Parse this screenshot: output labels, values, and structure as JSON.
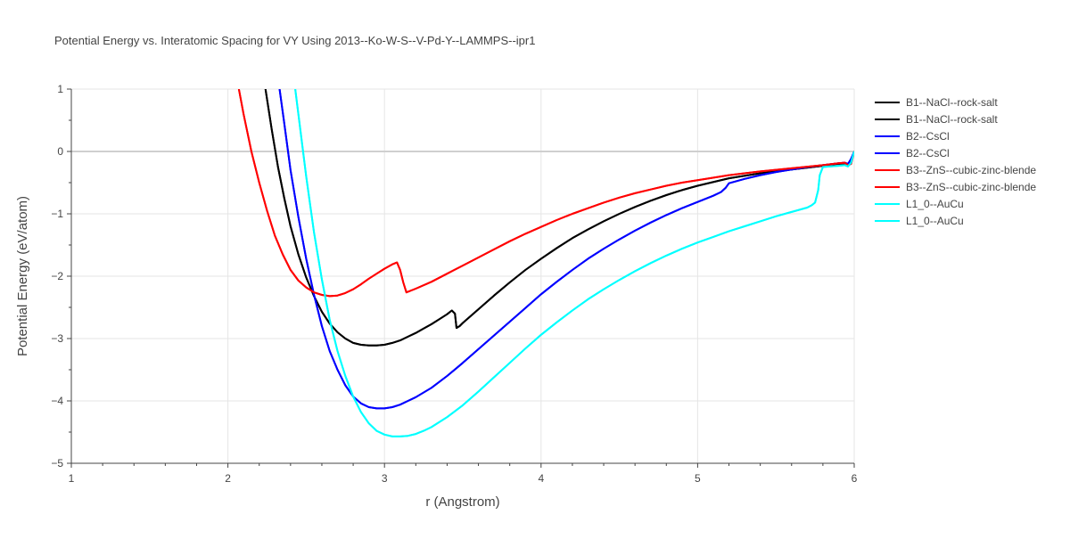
{
  "chart_data": {
    "type": "line",
    "title": "Potential Energy vs. Interatomic Spacing for VY Using 2013--Ko-W-S--V-Pd-Y--LAMMPS--ipr1",
    "xlabel": "r (Angstrom)",
    "ylabel": "Potential Energy (eV/atom)",
    "xlim": [
      1,
      6
    ],
    "ylim": [
      -5,
      1
    ],
    "xticks": [
      1,
      2,
      3,
      4,
      5,
      6
    ],
    "xtick_labels": [
      "1",
      "2",
      "3",
      "4",
      "5",
      "6"
    ],
    "yticks": [
      1,
      0,
      -1,
      -2,
      -3,
      -4,
      -5
    ],
    "ytick_labels": [
      "1",
      "0",
      "−1",
      "−2",
      "−3",
      "−4",
      "−5"
    ],
    "grid": true,
    "legend_position": "top-right",
    "series": [
      {
        "name": "B1--NaCl--rock-salt",
        "color": "#000000",
        "x": [
          2.24,
          2.28,
          2.32,
          2.36,
          2.4,
          2.45,
          2.5,
          2.55,
          2.6,
          2.65,
          2.7,
          2.75,
          2.8,
          2.85,
          2.9,
          2.95,
          3.0,
          3.05,
          3.1,
          3.15,
          3.2,
          3.25,
          3.3,
          3.35,
          3.4,
          3.43,
          3.45,
          3.46,
          3.48,
          3.5,
          3.6,
          3.7,
          3.8,
          3.9,
          4.0,
          4.1,
          4.2,
          4.3,
          4.4,
          4.5,
          4.6,
          4.7,
          4.8,
          4.9,
          5.0,
          5.2,
          5.4,
          5.6,
          5.8,
          5.9,
          5.94,
          5.96,
          5.98,
          6.0
        ],
        "y": [
          1.0,
          0.35,
          -0.25,
          -0.75,
          -1.2,
          -1.65,
          -2.02,
          -2.32,
          -2.57,
          -2.76,
          -2.9,
          -3.0,
          -3.07,
          -3.1,
          -3.11,
          -3.11,
          -3.1,
          -3.07,
          -3.03,
          -2.97,
          -2.91,
          -2.84,
          -2.77,
          -2.69,
          -2.61,
          -2.55,
          -2.6,
          -2.83,
          -2.8,
          -2.75,
          -2.53,
          -2.31,
          -2.1,
          -1.9,
          -1.72,
          -1.55,
          -1.39,
          -1.25,
          -1.12,
          -1.0,
          -0.89,
          -0.79,
          -0.7,
          -0.62,
          -0.55,
          -0.43,
          -0.35,
          -0.29,
          -0.23,
          -0.2,
          -0.19,
          -0.21,
          -0.15,
          0.0
        ]
      },
      {
        "name": "B1--NaCl--rock-salt",
        "color": "#000000",
        "x": [
          2.24,
          2.28,
          2.32,
          2.36,
          2.4,
          2.45,
          2.5,
          2.55,
          2.6,
          2.65,
          2.7,
          2.75,
          2.8,
          2.85,
          2.9,
          2.95,
          3.0,
          3.05,
          3.1,
          3.15,
          3.2,
          3.25,
          3.3,
          3.35,
          3.4,
          3.43,
          3.45,
          3.46,
          3.48,
          3.5,
          3.6,
          3.7,
          3.8,
          3.9,
          4.0,
          4.1,
          4.2,
          4.3,
          4.4,
          4.5,
          4.6,
          4.7,
          4.8,
          4.9,
          5.0,
          5.2,
          5.4,
          5.6,
          5.8,
          5.9,
          5.94,
          5.96,
          5.98,
          6.0
        ],
        "y": [
          1.0,
          0.35,
          -0.25,
          -0.75,
          -1.2,
          -1.65,
          -2.02,
          -2.32,
          -2.57,
          -2.76,
          -2.9,
          -3.0,
          -3.07,
          -3.1,
          -3.11,
          -3.11,
          -3.1,
          -3.07,
          -3.03,
          -2.97,
          -2.91,
          -2.84,
          -2.77,
          -2.69,
          -2.61,
          -2.55,
          -2.6,
          -2.83,
          -2.8,
          -2.75,
          -2.53,
          -2.31,
          -2.1,
          -1.9,
          -1.72,
          -1.55,
          -1.39,
          -1.25,
          -1.12,
          -1.0,
          -0.89,
          -0.79,
          -0.7,
          -0.62,
          -0.55,
          -0.43,
          -0.35,
          -0.29,
          -0.23,
          -0.2,
          -0.19,
          -0.21,
          -0.15,
          0.0
        ]
      },
      {
        "name": "B2--CsCl",
        "color": "#0000ff",
        "x": [
          2.33,
          2.36,
          2.4,
          2.45,
          2.5,
          2.55,
          2.6,
          2.65,
          2.7,
          2.75,
          2.8,
          2.85,
          2.9,
          2.95,
          3.0,
          3.05,
          3.1,
          3.15,
          3.2,
          3.3,
          3.4,
          3.5,
          3.6,
          3.7,
          3.8,
          3.9,
          4.0,
          4.1,
          4.2,
          4.3,
          4.4,
          4.5,
          4.6,
          4.7,
          4.8,
          4.9,
          5.0,
          5.1,
          5.15,
          5.18,
          5.2,
          5.3,
          5.4,
          5.5,
          5.6,
          5.7,
          5.8,
          5.9,
          5.94,
          5.96,
          5.98,
          6.0
        ],
        "y": [
          1.0,
          0.45,
          -0.3,
          -1.05,
          -1.72,
          -2.3,
          -2.8,
          -3.2,
          -3.5,
          -3.75,
          -3.93,
          -4.04,
          -4.1,
          -4.12,
          -4.12,
          -4.1,
          -4.06,
          -4.0,
          -3.94,
          -3.79,
          -3.6,
          -3.39,
          -3.17,
          -2.95,
          -2.73,
          -2.51,
          -2.29,
          -2.09,
          -1.9,
          -1.72,
          -1.56,
          -1.41,
          -1.27,
          -1.14,
          -1.02,
          -0.91,
          -0.81,
          -0.71,
          -0.65,
          -0.58,
          -0.51,
          -0.44,
          -0.38,
          -0.33,
          -0.29,
          -0.25,
          -0.22,
          -0.19,
          -0.18,
          -0.2,
          -0.12,
          0.0
        ]
      },
      {
        "name": "B2--CsCl",
        "color": "#0000ff",
        "x": [
          2.33,
          2.36,
          2.4,
          2.45,
          2.5,
          2.55,
          2.6,
          2.65,
          2.7,
          2.75,
          2.8,
          2.85,
          2.9,
          2.95,
          3.0,
          3.05,
          3.1,
          3.15,
          3.2,
          3.3,
          3.4,
          3.5,
          3.6,
          3.7,
          3.8,
          3.9,
          4.0,
          4.1,
          4.2,
          4.3,
          4.4,
          4.5,
          4.6,
          4.7,
          4.8,
          4.9,
          5.0,
          5.1,
          5.15,
          5.18,
          5.2,
          5.3,
          5.4,
          5.5,
          5.6,
          5.7,
          5.8,
          5.9,
          5.94,
          5.96,
          5.98,
          6.0
        ],
        "y": [
          1.0,
          0.45,
          -0.3,
          -1.05,
          -1.72,
          -2.3,
          -2.8,
          -3.2,
          -3.5,
          -3.75,
          -3.93,
          -4.04,
          -4.1,
          -4.12,
          -4.12,
          -4.1,
          -4.06,
          -4.0,
          -3.94,
          -3.79,
          -3.6,
          -3.39,
          -3.17,
          -2.95,
          -2.73,
          -2.51,
          -2.29,
          -2.09,
          -1.9,
          -1.72,
          -1.56,
          -1.41,
          -1.27,
          -1.14,
          -1.02,
          -0.91,
          -0.81,
          -0.71,
          -0.65,
          -0.58,
          -0.51,
          -0.44,
          -0.38,
          -0.33,
          -0.29,
          -0.25,
          -0.22,
          -0.19,
          -0.18,
          -0.2,
          -0.12,
          0.0
        ]
      },
      {
        "name": "B3--ZnS--cubic-zinc-blende",
        "color": "#ff0000",
        "x": [
          2.07,
          2.1,
          2.15,
          2.2,
          2.25,
          2.3,
          2.35,
          2.4,
          2.45,
          2.5,
          2.55,
          2.6,
          2.65,
          2.7,
          2.75,
          2.8,
          2.85,
          2.9,
          2.95,
          3.0,
          3.05,
          3.08,
          3.1,
          3.12,
          3.14,
          3.2,
          3.3,
          3.4,
          3.5,
          3.6,
          3.7,
          3.8,
          3.9,
          4.0,
          4.1,
          4.2,
          4.3,
          4.4,
          4.5,
          4.6,
          4.7,
          4.8,
          4.9,
          5.0,
          5.2,
          5.4,
          5.6,
          5.8,
          5.9,
          5.94,
          5.96,
          5.98,
          6.0
        ],
        "y": [
          1.0,
          0.6,
          0.0,
          -0.5,
          -0.95,
          -1.35,
          -1.65,
          -1.9,
          -2.07,
          -2.18,
          -2.26,
          -2.3,
          -2.32,
          -2.31,
          -2.27,
          -2.21,
          -2.13,
          -2.04,
          -1.96,
          -1.88,
          -1.81,
          -1.78,
          -1.9,
          -2.1,
          -2.26,
          -2.2,
          -2.09,
          -1.96,
          -1.83,
          -1.7,
          -1.57,
          -1.44,
          -1.32,
          -1.21,
          -1.1,
          -1.0,
          -0.91,
          -0.82,
          -0.74,
          -0.67,
          -0.61,
          -0.55,
          -0.5,
          -0.46,
          -0.38,
          -0.32,
          -0.27,
          -0.22,
          -0.19,
          -0.18,
          -0.22,
          -0.2,
          0.0
        ]
      },
      {
        "name": "B3--ZnS--cubic-zinc-blende",
        "color": "#ff0000",
        "x": [
          2.07,
          2.1,
          2.15,
          2.2,
          2.25,
          2.3,
          2.35,
          2.4,
          2.45,
          2.5,
          2.55,
          2.6,
          2.65,
          2.7,
          2.75,
          2.8,
          2.85,
          2.9,
          2.95,
          3.0,
          3.05,
          3.08,
          3.1,
          3.12,
          3.14,
          3.2,
          3.3,
          3.4,
          3.5,
          3.6,
          3.7,
          3.8,
          3.9,
          4.0,
          4.1,
          4.2,
          4.3,
          4.4,
          4.5,
          4.6,
          4.7,
          4.8,
          4.9,
          5.0,
          5.2,
          5.4,
          5.6,
          5.8,
          5.9,
          5.94,
          5.96,
          5.98,
          6.0
        ],
        "y": [
          1.0,
          0.6,
          0.0,
          -0.5,
          -0.95,
          -1.35,
          -1.65,
          -1.9,
          -2.07,
          -2.18,
          -2.26,
          -2.3,
          -2.32,
          -2.31,
          -2.27,
          -2.21,
          -2.13,
          -2.04,
          -1.96,
          -1.88,
          -1.81,
          -1.78,
          -1.9,
          -2.1,
          -2.26,
          -2.2,
          -2.09,
          -1.96,
          -1.83,
          -1.7,
          -1.57,
          -1.44,
          -1.32,
          -1.21,
          -1.1,
          -1.0,
          -0.91,
          -0.82,
          -0.74,
          -0.67,
          -0.61,
          -0.55,
          -0.5,
          -0.46,
          -0.38,
          -0.32,
          -0.27,
          -0.22,
          -0.19,
          -0.18,
          -0.22,
          -0.2,
          0.0
        ]
      },
      {
        "name": "L1_0--AuCu",
        "color": "#00ffff",
        "x": [
          2.43,
          2.45,
          2.5,
          2.55,
          2.6,
          2.65,
          2.7,
          2.75,
          2.8,
          2.85,
          2.9,
          2.95,
          3.0,
          3.05,
          3.1,
          3.15,
          3.2,
          3.25,
          3.3,
          3.4,
          3.5,
          3.6,
          3.7,
          3.8,
          3.9,
          4.0,
          4.1,
          4.2,
          4.3,
          4.4,
          4.5,
          4.6,
          4.7,
          4.8,
          4.9,
          5.0,
          5.1,
          5.2,
          5.3,
          5.4,
          5.5,
          5.6,
          5.7,
          5.73,
          5.75,
          5.77,
          5.78,
          5.8,
          5.85,
          5.9,
          5.94,
          5.96,
          5.98,
          6.0
        ],
        "y": [
          1.0,
          0.6,
          -0.4,
          -1.3,
          -2.05,
          -2.7,
          -3.2,
          -3.6,
          -3.93,
          -4.18,
          -4.36,
          -4.48,
          -4.54,
          -4.57,
          -4.57,
          -4.56,
          -4.53,
          -4.48,
          -4.42,
          -4.26,
          -4.07,
          -3.85,
          -3.62,
          -3.39,
          -3.16,
          -2.94,
          -2.74,
          -2.55,
          -2.37,
          -2.21,
          -2.06,
          -1.92,
          -1.79,
          -1.67,
          -1.56,
          -1.46,
          -1.37,
          -1.28,
          -1.2,
          -1.12,
          -1.04,
          -0.97,
          -0.9,
          -0.86,
          -0.82,
          -0.62,
          -0.38,
          -0.25,
          -0.24,
          -0.23,
          -0.22,
          -0.24,
          -0.18,
          0.0
        ]
      },
      {
        "name": "L1_0--AuCu",
        "color": "#00ffff",
        "x": [
          2.43,
          2.45,
          2.5,
          2.55,
          2.6,
          2.65,
          2.7,
          2.75,
          2.8,
          2.85,
          2.9,
          2.95,
          3.0,
          3.05,
          3.1,
          3.15,
          3.2,
          3.25,
          3.3,
          3.4,
          3.5,
          3.6,
          3.7,
          3.8,
          3.9,
          4.0,
          4.1,
          4.2,
          4.3,
          4.4,
          4.5,
          4.6,
          4.7,
          4.8,
          4.9,
          5.0,
          5.1,
          5.2,
          5.3,
          5.4,
          5.5,
          5.6,
          5.7,
          5.73,
          5.75,
          5.77,
          5.78,
          5.8,
          5.85,
          5.9,
          5.94,
          5.96,
          5.98,
          6.0
        ],
        "y": [
          1.0,
          0.6,
          -0.4,
          -1.3,
          -2.05,
          -2.7,
          -3.2,
          -3.6,
          -3.93,
          -4.18,
          -4.36,
          -4.48,
          -4.54,
          -4.57,
          -4.57,
          -4.56,
          -4.53,
          -4.48,
          -4.42,
          -4.26,
          -4.07,
          -3.85,
          -3.62,
          -3.39,
          -3.16,
          -2.94,
          -2.74,
          -2.55,
          -2.37,
          -2.21,
          -2.06,
          -1.92,
          -1.79,
          -1.67,
          -1.56,
          -1.46,
          -1.37,
          -1.28,
          -1.2,
          -1.12,
          -1.04,
          -0.97,
          -0.9,
          -0.86,
          -0.82,
          -0.62,
          -0.38,
          -0.25,
          -0.24,
          -0.23,
          -0.22,
          -0.24,
          -0.18,
          0.0
        ]
      }
    ]
  },
  "legend": {
    "entries": [
      "B1--NaCl--rock-salt",
      "B1--NaCl--rock-salt",
      "B2--CsCl",
      "B2--CsCl",
      "B3--ZnS--cubic-zinc-blende",
      "B3--ZnS--cubic-zinc-blende",
      "L1_0--AuCu",
      "L1_0--AuCu"
    ]
  }
}
